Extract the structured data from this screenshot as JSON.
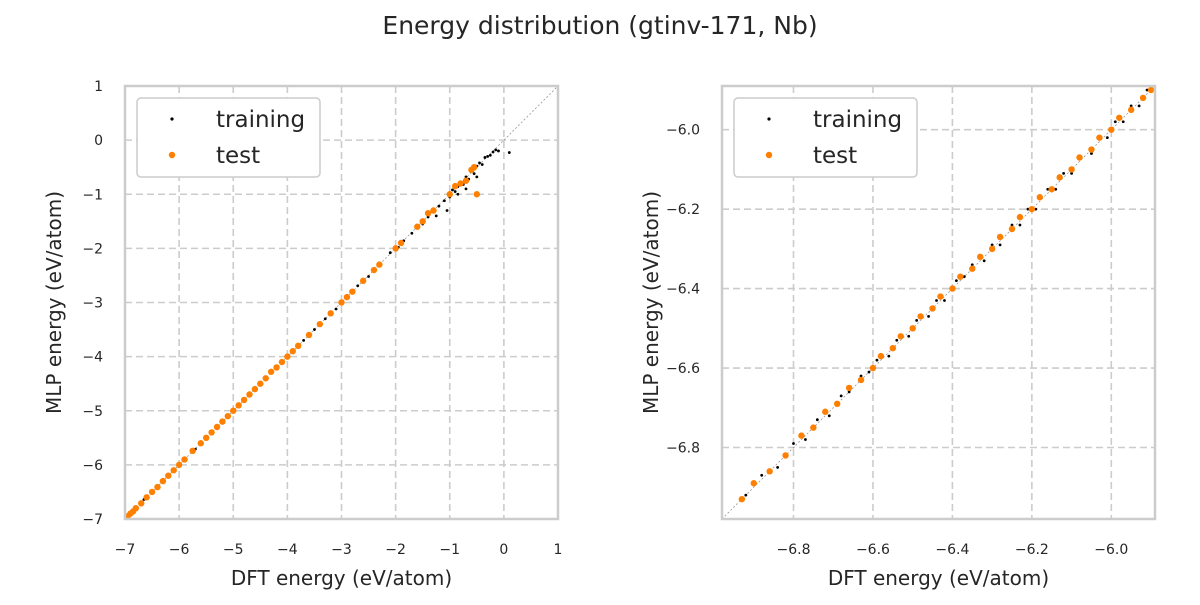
{
  "figure": {
    "title": "Energy distribution (gtinv-171, Nb)"
  },
  "colors": {
    "training": "#000000",
    "test": "#ff8000",
    "grid": "#cccccc",
    "frame": "#cccccc",
    "diagonal": "#999999"
  },
  "chart_data": [
    {
      "type": "scatter",
      "panel": "left",
      "xlabel": "DFT energy (eV/atom)",
      "ylabel": "MLP energy (eV/atom)",
      "xlim": [
        -7,
        1
      ],
      "ylim": [
        -7,
        1
      ],
      "xticks": [
        -7,
        -6,
        -5,
        -4,
        -3,
        -2,
        -1,
        0,
        1
      ],
      "yticks": [
        -7,
        -6,
        -5,
        -4,
        -3,
        -2,
        -1,
        0,
        1
      ],
      "grid": true,
      "legend_position": "top-left",
      "diagonal": true,
      "series": [
        {
          "name": "training",
          "marker": "small-dot",
          "x": [
            -6.95,
            -6.8,
            -6.65,
            -6.5,
            -6.3,
            -6.1,
            -5.9,
            -5.7,
            -5.5,
            -5.3,
            -5.1,
            -4.9,
            -4.7,
            -4.5,
            -4.3,
            -4.1,
            -3.9,
            -3.7,
            -3.5,
            -3.3,
            -3.1,
            -2.9,
            -2.7,
            -2.5,
            -2.3,
            -2.1,
            -1.95,
            -1.85,
            -1.7,
            -1.6,
            -1.5,
            -1.4,
            -1.3,
            -1.2,
            -1.1,
            -1.0,
            -0.95,
            -0.9,
            -0.85,
            -0.8,
            -0.75,
            -0.7,
            -0.65,
            -0.6,
            -0.55,
            -0.5,
            -0.45,
            -0.4,
            -0.35,
            -0.3,
            -0.25,
            -0.2,
            -0.15,
            -0.1,
            0.1,
            -0.5,
            -0.6,
            -0.7,
            -0.85,
            -1.05,
            -1.25
          ],
          "y": [
            -6.95,
            -6.8,
            -6.64,
            -6.5,
            -6.31,
            -6.1,
            -5.9,
            -5.71,
            -5.5,
            -5.29,
            -5.1,
            -4.9,
            -4.71,
            -4.49,
            -4.3,
            -4.1,
            -3.91,
            -3.7,
            -3.5,
            -3.3,
            -3.12,
            -2.9,
            -2.69,
            -2.52,
            -2.31,
            -2.08,
            -1.98,
            -1.86,
            -1.72,
            -1.58,
            -1.55,
            -1.42,
            -1.28,
            -1.22,
            -1.12,
            -1.05,
            -0.92,
            -0.95,
            -0.86,
            -0.78,
            -0.82,
            -0.68,
            -0.72,
            -0.58,
            -0.62,
            -0.48,
            -0.42,
            -0.45,
            -0.32,
            -0.3,
            -0.28,
            -0.22,
            -0.18,
            -0.2,
            -0.23,
            -0.68,
            -0.55,
            -0.9,
            -1.0,
            -1.3,
            -1.4
          ]
        },
        {
          "name": "test",
          "marker": "dot",
          "x": [
            -6.95,
            -6.9,
            -6.85,
            -6.8,
            -6.7,
            -6.6,
            -6.5,
            -6.4,
            -6.3,
            -6.2,
            -6.1,
            -6.0,
            -5.9,
            -5.75,
            -5.6,
            -5.5,
            -5.4,
            -5.3,
            -5.2,
            -5.1,
            -5.0,
            -4.9,
            -4.8,
            -4.7,
            -4.6,
            -4.5,
            -4.4,
            -4.3,
            -4.2,
            -4.1,
            -4.0,
            -3.9,
            -3.8,
            -3.6,
            -3.4,
            -3.2,
            -3.0,
            -2.9,
            -2.8,
            -2.6,
            -2.4,
            -2.3,
            -2.0,
            -1.9,
            -1.6,
            -1.5,
            -1.4,
            -1.3,
            -1.0,
            -0.9,
            -0.8,
            -0.7,
            -0.6,
            -0.55,
            -0.5
          ],
          "y": [
            -6.95,
            -6.9,
            -6.86,
            -6.8,
            -6.71,
            -6.6,
            -6.5,
            -6.41,
            -6.3,
            -6.2,
            -6.1,
            -6.0,
            -5.9,
            -5.74,
            -5.6,
            -5.5,
            -5.4,
            -5.3,
            -5.2,
            -5.1,
            -5.0,
            -4.9,
            -4.8,
            -4.7,
            -4.6,
            -4.5,
            -4.4,
            -4.28,
            -4.2,
            -4.1,
            -4.0,
            -3.9,
            -3.8,
            -3.6,
            -3.4,
            -3.2,
            -3.0,
            -2.9,
            -2.8,
            -2.6,
            -2.4,
            -2.3,
            -2.0,
            -1.9,
            -1.6,
            -1.5,
            -1.35,
            -1.3,
            -1.0,
            -0.85,
            -0.8,
            -0.75,
            -0.55,
            -0.5,
            -1.0
          ]
        }
      ]
    },
    {
      "type": "scatter",
      "panel": "right",
      "xlabel": "DFT energy (eV/atom)",
      "ylabel": "MLP energy (eV/atom)",
      "xlim": [
        -6.98,
        -5.89
      ],
      "ylim": [
        -6.98,
        -5.89
      ],
      "xticks": [
        -6.8,
        -6.6,
        -6.4,
        -6.2,
        -6.0
      ],
      "yticks": [
        -6.8,
        -6.6,
        -6.4,
        -6.2,
        -6.0
      ],
      "xtick_labels": [
        "−6.8",
        "−6.6",
        "−6.4",
        "−6.2",
        "−6.0"
      ],
      "ytick_labels": [
        "−6.8",
        "−6.6",
        "−6.4",
        "−6.2",
        "−6.0"
      ],
      "grid": true,
      "legend_position": "top-left",
      "diagonal": true,
      "series": [
        {
          "name": "training",
          "marker": "small-dot",
          "x": [
            -6.92,
            -6.88,
            -6.84,
            -6.8,
            -6.77,
            -6.74,
            -6.71,
            -6.68,
            -6.66,
            -6.63,
            -6.61,
            -6.59,
            -6.56,
            -6.54,
            -6.51,
            -6.49,
            -6.46,
            -6.44,
            -6.42,
            -6.39,
            -6.37,
            -6.35,
            -6.32,
            -6.3,
            -6.28,
            -6.25,
            -6.23,
            -6.21,
            -6.19,
            -6.16,
            -6.14,
            -6.12,
            -6.1,
            -6.08,
            -6.05,
            -6.03,
            -6.01,
            -5.99,
            -5.97,
            -5.95,
            -5.93,
            -5.91
          ],
          "y": [
            -6.92,
            -6.87,
            -6.85,
            -6.79,
            -6.78,
            -6.73,
            -6.72,
            -6.67,
            -6.66,
            -6.62,
            -6.61,
            -6.58,
            -6.57,
            -6.53,
            -6.52,
            -6.48,
            -6.47,
            -6.43,
            -6.43,
            -6.38,
            -6.37,
            -6.34,
            -6.33,
            -6.29,
            -6.29,
            -6.24,
            -6.24,
            -6.2,
            -6.2,
            -6.15,
            -6.15,
            -6.11,
            -6.11,
            -6.07,
            -6.06,
            -6.02,
            -6.02,
            -5.98,
            -5.98,
            -5.94,
            -5.94,
            -5.9
          ]
        },
        {
          "name": "test",
          "marker": "dot",
          "x": [
            -6.93,
            -6.9,
            -6.86,
            -6.82,
            -6.78,
            -6.75,
            -6.72,
            -6.69,
            -6.66,
            -6.63,
            -6.6,
            -6.58,
            -6.55,
            -6.53,
            -6.5,
            -6.48,
            -6.45,
            -6.43,
            -6.4,
            -6.38,
            -6.35,
            -6.33,
            -6.3,
            -6.28,
            -6.25,
            -6.23,
            -6.2,
            -6.18,
            -6.15,
            -6.13,
            -6.1,
            -6.08,
            -6.05,
            -6.03,
            -6.0,
            -5.98,
            -5.95,
            -5.92,
            -5.9
          ],
          "y": [
            -6.93,
            -6.89,
            -6.86,
            -6.82,
            -6.77,
            -6.75,
            -6.71,
            -6.69,
            -6.65,
            -6.63,
            -6.6,
            -6.57,
            -6.55,
            -6.52,
            -6.5,
            -6.47,
            -6.45,
            -6.42,
            -6.4,
            -6.37,
            -6.35,
            -6.32,
            -6.3,
            -6.27,
            -6.25,
            -6.22,
            -6.2,
            -6.17,
            -6.15,
            -6.12,
            -6.1,
            -6.07,
            -6.05,
            -6.02,
            -6.0,
            -5.97,
            -5.95,
            -5.92,
            -5.9
          ]
        }
      ]
    }
  ]
}
